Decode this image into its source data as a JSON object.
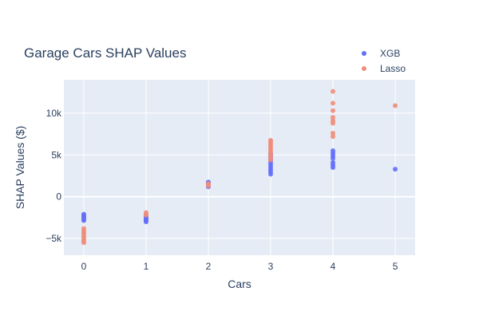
{
  "chart_data": {
    "type": "scatter",
    "title": "Garage Cars SHAP Values",
    "xlabel": "Cars",
    "ylabel": "SHAP Values ($)",
    "xlim": [
      -0.32,
      5.32
    ],
    "ylim": [
      -7000,
      14000
    ],
    "x_ticks": [
      0,
      1,
      2,
      3,
      4,
      5
    ],
    "x_tick_labels": [
      "0",
      "1",
      "2",
      "3",
      "4",
      "5"
    ],
    "y_ticks": [
      -5000,
      0,
      5000,
      10000
    ],
    "y_tick_labels": [
      "−5k",
      "0",
      "5k",
      "10k"
    ],
    "grid": true,
    "legend_position": "top-right",
    "colors": {
      "plot_bg": "#E5ECF6",
      "grid": "#ffffff",
      "text": "#2a3f5f"
    },
    "series": [
      {
        "name": "XGB",
        "color": "#636EFA",
        "points": [
          [
            0,
            -2100
          ],
          [
            0,
            -2250
          ],
          [
            0,
            -2400
          ],
          [
            0,
            -2550
          ],
          [
            0,
            -2700
          ],
          [
            0,
            -2850
          ],
          [
            1,
            -2200
          ],
          [
            1,
            -2400
          ],
          [
            1,
            -2550
          ],
          [
            1,
            -2700
          ],
          [
            1,
            -2850
          ],
          [
            1,
            -3000
          ],
          [
            2,
            1200
          ],
          [
            2,
            1400
          ],
          [
            2,
            1600
          ],
          [
            2,
            1750
          ],
          [
            3,
            2700
          ],
          [
            3,
            3000
          ],
          [
            3,
            3300
          ],
          [
            3,
            3600
          ],
          [
            3,
            3900
          ],
          [
            3,
            4200
          ],
          [
            3,
            4500
          ],
          [
            3,
            4800
          ],
          [
            3,
            5100
          ],
          [
            4,
            3500
          ],
          [
            4,
            3800
          ],
          [
            4,
            4100
          ],
          [
            4,
            4600
          ],
          [
            4,
            4900
          ],
          [
            4,
            5200
          ],
          [
            4,
            5500
          ],
          [
            5,
            3300
          ]
        ]
      },
      {
        "name": "Lasso",
        "color": "#EF8D7A",
        "points": [
          [
            0,
            -3800
          ],
          [
            0,
            -4050
          ],
          [
            0,
            -4300
          ],
          [
            0,
            -4550
          ],
          [
            0,
            -4800
          ],
          [
            0,
            -5050
          ],
          [
            0,
            -5300
          ],
          [
            0,
            -5500
          ],
          [
            1,
            -1900
          ],
          [
            1,
            -2050
          ],
          [
            1,
            -2200
          ],
          [
            2,
            1300
          ],
          [
            2,
            1450
          ],
          [
            2,
            1550
          ],
          [
            3,
            4400
          ],
          [
            3,
            4700
          ],
          [
            3,
            5000
          ],
          [
            3,
            5300
          ],
          [
            3,
            5550
          ],
          [
            3,
            5800
          ],
          [
            3,
            6050
          ],
          [
            3,
            6300
          ],
          [
            3,
            6550
          ],
          [
            3,
            6750
          ],
          [
            4,
            7200
          ],
          [
            4,
            7600
          ],
          [
            4,
            8800
          ],
          [
            4,
            9100
          ],
          [
            4,
            9500
          ],
          [
            4,
            10300
          ],
          [
            4,
            11200
          ],
          [
            4,
            12600
          ],
          [
            5,
            10900
          ]
        ]
      }
    ]
  }
}
